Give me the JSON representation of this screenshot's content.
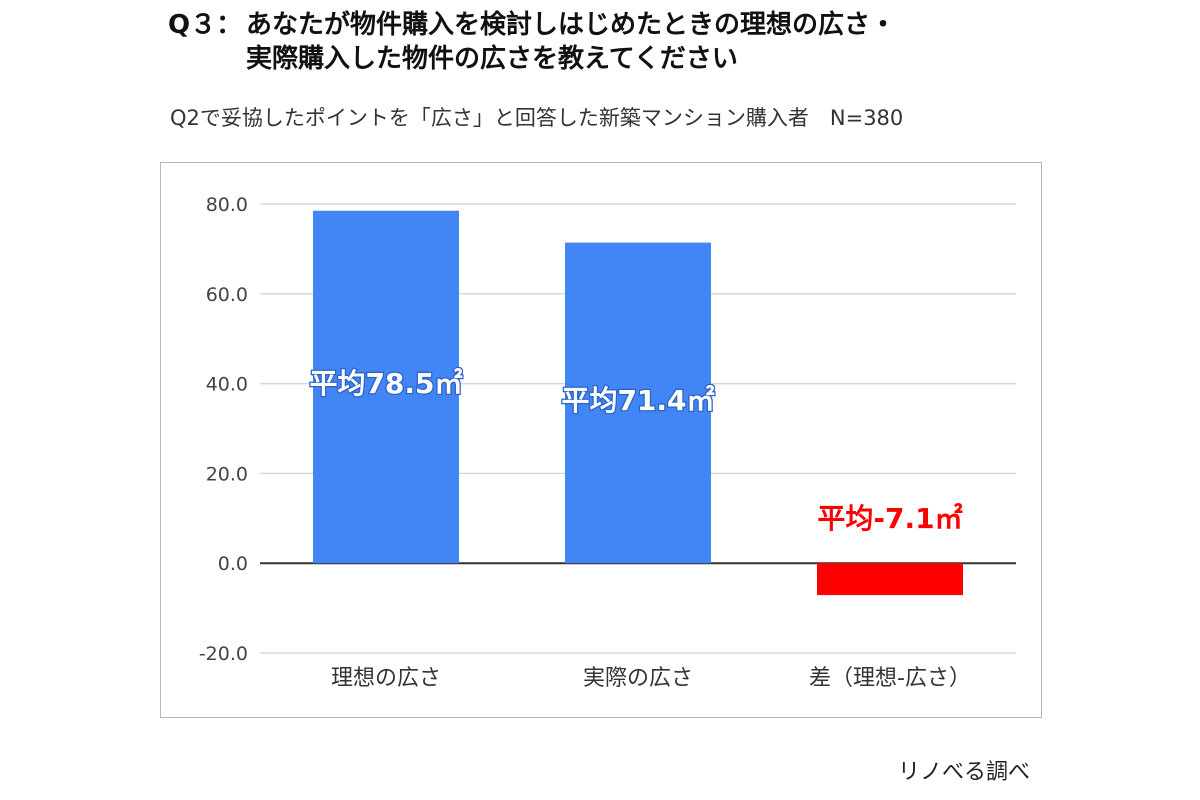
{
  "header": {
    "q_prefix": "Q３：",
    "title_line1": "あなたが物件購入を検討しはじめたときの理想の広さ・",
    "title_line2": "実際購入した物件の広さを教えてください",
    "subtitle": "Q2で妥協したポイントを「広さ」と回答した新築マンション購入者　N=380"
  },
  "source": "リノべる調べ",
  "chart_data": {
    "type": "bar",
    "categories": [
      "理想の広さ",
      "実際の広さ",
      "差（理想-広さ）"
    ],
    "values": [
      78.5,
      71.4,
      -7.1
    ],
    "data_labels": [
      "平均78.5㎡",
      "平均71.4㎡",
      "平均-7.1㎡"
    ],
    "colors": [
      "#4285f4",
      "#4285f4",
      "#ff0000"
    ],
    "label_colors": [
      "#ffffff",
      "#ffffff",
      "#ff0000"
    ],
    "ylim": [
      -20,
      80
    ],
    "yticks": [
      "80.0",
      "60.0",
      "40.0",
      "20.0",
      "0.0",
      "-20.0"
    ],
    "grid": true,
    "legend": "none"
  }
}
